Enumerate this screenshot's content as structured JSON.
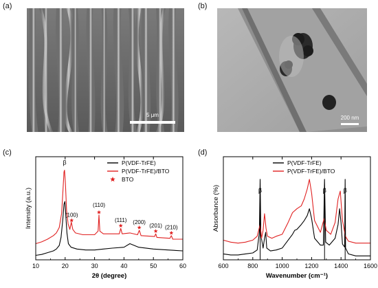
{
  "panels": {
    "a": {
      "letter": "(a)",
      "scale_label": "5 μm"
    },
    "b": {
      "letter": "(b)",
      "scale_label": "200 nm"
    },
    "c": {
      "letter": "(c)"
    },
    "d": {
      "letter": "(d)"
    }
  },
  "chart_data": [
    {
      "type": "line",
      "panel": "c",
      "xlabel": "2θ (degree)",
      "ylabel": "Intensity (a.u.)",
      "xlim": [
        10,
        60
      ],
      "xticks": [
        10,
        20,
        30,
        40,
        50,
        60
      ],
      "yticks_shown": false,
      "legend_position": "top-right",
      "legend": [
        {
          "label": "P(VDF-TrFE)",
          "marker": "line",
          "color": "#000000"
        },
        {
          "label": "P(VDF-TrFE)/BTO",
          "marker": "line",
          "color": "#e02020"
        },
        {
          "label": "BTO",
          "marker": "star",
          "color": "#e02020"
        }
      ],
      "series": [
        {
          "name": "P(VDF-TrFE)",
          "color": "#000000",
          "x": [
            10,
            12,
            14,
            16,
            17,
            18,
            18.6,
            19.2,
            19.6,
            19.9,
            20.2,
            20.6,
            21.1,
            22,
            24,
            27,
            30,
            33,
            36,
            40,
            42,
            45,
            50,
            55,
            60
          ],
          "y": [
            0.05,
            0.06,
            0.08,
            0.1,
            0.12,
            0.16,
            0.25,
            0.45,
            0.62,
            0.65,
            0.5,
            0.3,
            0.18,
            0.14,
            0.12,
            0.11,
            0.11,
            0.12,
            0.13,
            0.14,
            0.18,
            0.14,
            0.12,
            0.11,
            0.1
          ]
        },
        {
          "name": "P(VDF-TrFE)/BTO",
          "color": "#e02020",
          "x": [
            10,
            12,
            14,
            16,
            17,
            18,
            18.8,
            19.3,
            19.6,
            19.8,
            20.1,
            20.5,
            21,
            21.6,
            22.1,
            22.6,
            23.5,
            26,
            30,
            31.2,
            31.5,
            31.8,
            33,
            36,
            38.4,
            38.9,
            39.4,
            42,
            44.6,
            45.2,
            45.8,
            50.4,
            50.8,
            51.2,
            55.6,
            56.1,
            56.6,
            60
          ],
          "y": [
            0.18,
            0.2,
            0.23,
            0.27,
            0.3,
            0.36,
            0.52,
            0.8,
            0.98,
            1.0,
            0.85,
            0.55,
            0.4,
            0.34,
            0.42,
            0.34,
            0.3,
            0.28,
            0.28,
            0.32,
            0.5,
            0.32,
            0.29,
            0.29,
            0.29,
            0.35,
            0.29,
            0.3,
            0.28,
            0.33,
            0.27,
            0.26,
            0.29,
            0.25,
            0.24,
            0.27,
            0.23,
            0.23
          ]
        }
      ],
      "annotations": [
        {
          "text": "β",
          "x": 19.8,
          "y": 1.06
        },
        {
          "text": "(100)",
          "x": 22.2,
          "y": 0.48,
          "star_y": 0.44
        },
        {
          "text": "(110)",
          "x": 31.5,
          "y": 0.59,
          "star_y": 0.53
        },
        {
          "text": "(111)",
          "x": 38.9,
          "y": 0.42,
          "star_y": 0.38
        },
        {
          "text": "(200)",
          "x": 45.2,
          "y": 0.4,
          "star_y": 0.36
        },
        {
          "text": "(201)",
          "x": 50.8,
          "y": 0.36,
          "star_y": 0.32
        },
        {
          "text": "(210)",
          "x": 56.1,
          "y": 0.34,
          "star_y": 0.3
        }
      ]
    },
    {
      "type": "line",
      "panel": "d",
      "xlabel": "Wavenumber (cm⁻¹)",
      "ylabel": "Absorbance (%)",
      "xlim": [
        600,
        1600
      ],
      "xticks": [
        600,
        800,
        1000,
        1200,
        1400,
        1600
      ],
      "yticks_shown": false,
      "legend_position": "top-left",
      "legend": [
        {
          "label": "P(VDF-TrFE)",
          "marker": "line",
          "color": "#000000"
        },
        {
          "label": "P(VDF-TrFE)/BTO",
          "marker": "line",
          "color": "#e02020"
        }
      ],
      "series": [
        {
          "name": "P(VDF-TrFE)",
          "color": "#000000",
          "x": [
            600,
            650,
            700,
            750,
            800,
            830,
            845,
            850,
            855,
            870,
            880,
            888,
            895,
            920,
            960,
            1000,
            1040,
            1070,
            1085,
            1100,
            1130,
            1150,
            1170,
            1185,
            1200,
            1220,
            1260,
            1280,
            1288,
            1296,
            1320,
            1360,
            1380,
            1390,
            1400,
            1410,
            1425,
            1428,
            1431,
            1450,
            1500,
            1550,
            1600
          ],
          "y": [
            0.06,
            0.05,
            0.05,
            0.06,
            0.07,
            0.1,
            0.28,
            0.82,
            0.25,
            0.12,
            0.22,
            0.28,
            0.12,
            0.09,
            0.1,
            0.12,
            0.2,
            0.26,
            0.3,
            0.31,
            0.36,
            0.4,
            0.45,
            0.52,
            0.42,
            0.22,
            0.15,
            0.15,
            0.82,
            0.18,
            0.15,
            0.22,
            0.36,
            0.52,
            0.38,
            0.16,
            0.13,
            0.82,
            0.12,
            0.06,
            0.04,
            0.04,
            0.04
          ]
        },
        {
          "name": "P(VDF-TrFE)/BTO",
          "color": "#e02020",
          "x": [
            600,
            650,
            700,
            750,
            800,
            830,
            850,
            860,
            870,
            880,
            890,
            900,
            930,
            960,
            1000,
            1040,
            1070,
            1100,
            1130,
            1150,
            1170,
            1185,
            1200,
            1220,
            1260,
            1285,
            1300,
            1330,
            1360,
            1380,
            1395,
            1410,
            1430,
            1450,
            1500,
            1550,
            1600
          ],
          "y": [
            0.2,
            0.18,
            0.17,
            0.18,
            0.2,
            0.24,
            0.36,
            0.22,
            0.3,
            0.47,
            0.32,
            0.24,
            0.22,
            0.24,
            0.26,
            0.38,
            0.48,
            0.52,
            0.55,
            0.62,
            0.72,
            0.82,
            0.68,
            0.4,
            0.28,
            0.42,
            0.3,
            0.26,
            0.38,
            0.62,
            0.7,
            0.4,
            0.24,
            0.19,
            0.17,
            0.17,
            0.17
          ]
        }
      ],
      "annotations": [
        {
          "text": "β",
          "x": 850
        },
        {
          "text": "β",
          "x": 1288
        },
        {
          "text": "β",
          "x": 1428
        }
      ]
    }
  ]
}
